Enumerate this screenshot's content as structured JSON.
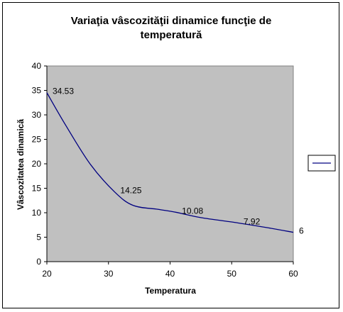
{
  "chart_data": {
    "type": "line",
    "title_line1": "Variaţia vâscozităţii dinamice funcţie de",
    "title_line2": "temperatură",
    "xlabel": "Temperatura",
    "ylabel": "Vâscozitatea dinamică",
    "xlim": [
      20,
      60
    ],
    "ylim": [
      0,
      40
    ],
    "xticks": [
      20,
      30,
      40,
      50,
      60
    ],
    "yticks": [
      0,
      5,
      10,
      15,
      20,
      25,
      30,
      35,
      40
    ],
    "grid": false,
    "plot_background": "#c0c0c0",
    "line_color": "#000080",
    "legend_position": "right",
    "series": [
      {
        "x": [
          20,
          23,
          27,
          31,
          34,
          38,
          41,
          45,
          51,
          56,
          60
        ],
        "y": [
          34.53,
          28.0,
          20.0,
          14.25,
          11.5,
          10.7,
          10.08,
          9.0,
          7.92,
          6.9,
          6.0
        ]
      }
    ],
    "data_labels": [
      {
        "x": 20,
        "y": 34.53,
        "text": "34.53"
      },
      {
        "x": 31,
        "y": 14.25,
        "text": "14.25"
      },
      {
        "x": 41,
        "y": 10.08,
        "text": "10.08"
      },
      {
        "x": 51,
        "y": 7.92,
        "text": "7.92"
      },
      {
        "x": 60,
        "y": 6,
        "text": "6"
      }
    ]
  }
}
